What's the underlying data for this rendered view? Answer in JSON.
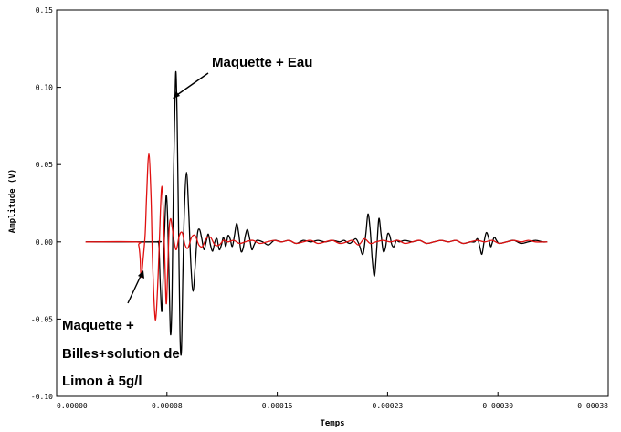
{
  "chart_data": {
    "type": "line",
    "xlabel": "Temps",
    "ylabel": "Amplitude (V)",
    "xlim": [
      0,
      0.00038
    ],
    "ylim": [
      -0.1,
      0.15
    ],
    "grid": false,
    "x_ticks": [
      {
        "value": 0,
        "label": "0.00000"
      },
      {
        "value": 7.6e-05,
        "label": "0.00008"
      },
      {
        "value": 0.000152,
        "label": "0.00015"
      },
      {
        "value": 0.000228,
        "label": "0.00023"
      },
      {
        "value": 0.000304,
        "label": "0.00030"
      },
      {
        "value": 0.00038,
        "label": "0.00038"
      }
    ],
    "y_ticks": [
      {
        "value": -0.1,
        "label": "-0.10"
      },
      {
        "value": -0.05,
        "label": "-0.05"
      },
      {
        "value": 0.0,
        "label": "0.00"
      },
      {
        "value": 0.05,
        "label": "0.05"
      },
      {
        "value": 0.1,
        "label": "0.10"
      },
      {
        "value": 0.15,
        "label": "0.15"
      }
    ],
    "series": [
      {
        "color": "#000000",
        "points": [
          [
            2e-05,
            0
          ],
          [
            6.8e-05,
            0
          ],
          [
            6.95e-05,
            0
          ],
          [
            7.05e-05,
            -0.003
          ],
          [
            7.15e-05,
            -0.03
          ],
          [
            7.25e-05,
            -0.045
          ],
          [
            7.35e-05,
            -0.02
          ],
          [
            7.45e-05,
            0.01
          ],
          [
            7.55e-05,
            0.03
          ],
          [
            7.65e-05,
            0.015
          ],
          [
            7.75e-05,
            -0.025
          ],
          [
            7.85e-05,
            -0.06
          ],
          [
            7.95e-05,
            -0.035
          ],
          [
            8.05e-05,
            0.04
          ],
          [
            8.15e-05,
            0.09
          ],
          [
            8.22e-05,
            0.11
          ],
          [
            8.3e-05,
            0.08
          ],
          [
            8.4e-05,
            0.01
          ],
          [
            8.5e-05,
            -0.06
          ],
          [
            8.6e-05,
            -0.07
          ],
          [
            8.7e-05,
            -0.02
          ],
          [
            8.8e-05,
            0.02
          ],
          [
            8.95e-05,
            0.045
          ],
          [
            9.1e-05,
            0.02
          ],
          [
            9.25e-05,
            -0.015
          ],
          [
            9.4e-05,
            -0.032
          ],
          [
            9.55e-05,
            -0.015
          ],
          [
            9.7e-05,
            0.005
          ],
          [
            9.85e-05,
            0.008
          ],
          [
            0.0001,
            0.002
          ],
          [
            0.0001015,
            -0.005
          ],
          [
            0.000103,
            0
          ],
          [
            0.0001045,
            0.005
          ],
          [
            0.000106,
            -0.002
          ],
          [
            0.0001075,
            -0.006
          ],
          [
            0.000109,
            0
          ],
          [
            0.0001105,
            0.002
          ],
          [
            0.000112,
            -0.005
          ],
          [
            0.0001135,
            -0.002
          ],
          [
            0.000115,
            0.003
          ],
          [
            0.0001165,
            -0.003
          ],
          [
            0.000118,
            0.004
          ],
          [
            0.0001195,
            0.002
          ],
          [
            0.000121,
            -0.003
          ],
          [
            0.0001225,
            0.004
          ],
          [
            0.000124,
            0.012
          ],
          [
            0.0001255,
            0.005
          ],
          [
            0.000127,
            -0.006
          ],
          [
            0.0001285,
            -0.004
          ],
          [
            0.00013,
            0.004
          ],
          [
            0.0001315,
            0.008
          ],
          [
            0.000133,
            0.002
          ],
          [
            0.0001345,
            -0.005
          ],
          [
            0.000136,
            -0.002
          ],
          [
            0.000138,
            0.001
          ],
          [
            0.000142,
            0
          ],
          [
            0.000146,
            -0.002
          ],
          [
            0.00015,
            0.001
          ],
          [
            0.000155,
            0
          ],
          [
            0.00016,
            0.001
          ],
          [
            0.000165,
            -0.001
          ],
          [
            0.00017,
            0.001
          ],
          [
            0.000175,
            0
          ],
          [
            0.00018,
            0.001
          ],
          [
            0.000185,
            0
          ],
          [
            0.00019,
            0.001
          ],
          [
            0.000195,
            0
          ],
          [
            0.000198,
            0.001
          ],
          [
            0.000202,
            -0.001
          ],
          [
            0.000206,
            0.002
          ],
          [
            0.0002085,
            -0.002
          ],
          [
            0.000211,
            -0.008
          ],
          [
            0.000213,
            0.005
          ],
          [
            0.0002145,
            0.018
          ],
          [
            0.000216,
            0.008
          ],
          [
            0.0002175,
            -0.012
          ],
          [
            0.000219,
            -0.022
          ],
          [
            0.0002205,
            -0.005
          ],
          [
            0.000222,
            0.015
          ],
          [
            0.0002235,
            0.005
          ],
          [
            0.000225,
            -0.006
          ],
          [
            0.0002265,
            -0.004
          ],
          [
            0.000228,
            0.005
          ],
          [
            0.0002295,
            0.004
          ],
          [
            0.000231,
            -0.002
          ],
          [
            0.0002325,
            -0.003
          ],
          [
            0.000234,
            0.001
          ],
          [
            0.000236,
            0
          ],
          [
            0.00024,
            0.001
          ],
          [
            0.000245,
            0
          ],
          [
            0.00025,
            0.001
          ],
          [
            0.000255,
            -0.001
          ],
          [
            0.00026,
            0
          ],
          [
            0.000265,
            0.001
          ],
          [
            0.00027,
            0
          ],
          [
            0.000275,
            0.001
          ],
          [
            0.00028,
            -0.001
          ],
          [
            0.000285,
            0
          ],
          [
            0.000288,
            0
          ],
          [
            0.00029,
            0.002
          ],
          [
            0.0002915,
            -0.003
          ],
          [
            0.000293,
            -0.008
          ],
          [
            0.0002945,
            0
          ],
          [
            0.000296,
            0.006
          ],
          [
            0.0002975,
            0.003
          ],
          [
            0.000299,
            -0.003
          ],
          [
            0.0003,
            -0.001
          ],
          [
            0.0003015,
            0.003
          ],
          [
            0.000303,
            0.001
          ],
          [
            0.000305,
            -0.001
          ],
          [
            0.00031,
            0
          ],
          [
            0.000315,
            0.001
          ],
          [
            0.00032,
            -0.001
          ],
          [
            0.000325,
            0
          ],
          [
            0.00033,
            0.001
          ],
          [
            0.000335,
            0
          ],
          [
            0.000338,
            0
          ]
        ]
      },
      {
        "color": "#e01010",
        "points": [
          [
            2e-05,
            0
          ],
          [
            5.5e-05,
            0
          ],
          [
            5.65e-05,
            -0.002
          ],
          [
            5.75e-05,
            -0.01
          ],
          [
            5.8e-05,
            -0.021
          ],
          [
            5.85e-05,
            -0.022
          ],
          [
            5.95e-05,
            -0.012
          ],
          [
            6.1e-05,
            0.005
          ],
          [
            6.2e-05,
            0.03
          ],
          [
            6.35e-05,
            0.057
          ],
          [
            6.5e-05,
            0.03
          ],
          [
            6.6e-05,
            -0.01
          ],
          [
            6.75e-05,
            -0.045
          ],
          [
            6.85e-05,
            -0.048
          ],
          [
            7e-05,
            -0.02
          ],
          [
            7.15e-05,
            0.02
          ],
          [
            7.25e-05,
            0.036
          ],
          [
            7.35e-05,
            0.02
          ],
          [
            7.45e-05,
            -0.01
          ],
          [
            7.55e-05,
            -0.04
          ],
          [
            7.65e-05,
            -0.02
          ],
          [
            7.75e-05,
            0.008
          ],
          [
            7.85e-05,
            0.015
          ],
          [
            7.95e-05,
            0.01
          ],
          [
            8.1e-05,
            0
          ],
          [
            8.25e-05,
            -0.005
          ],
          [
            8.45e-05,
            0.004
          ],
          [
            8.65e-05,
            0.006
          ],
          [
            8.85e-05,
            -0.002
          ],
          [
            9.05e-05,
            -0.004
          ],
          [
            9.3e-05,
            0.003
          ],
          [
            9.55e-05,
            0.004
          ],
          [
            9.8e-05,
            -0.002
          ],
          [
            0.0001005,
            -0.003
          ],
          [
            0.000103,
            0.002
          ],
          [
            0.000106,
            0.003
          ],
          [
            0.000109,
            -0.002
          ],
          [
            0.000112,
            -0.002
          ],
          [
            0.000115,
            0.001
          ],
          [
            0.000118,
            0
          ],
          [
            0.000122,
            0.001
          ],
          [
            0.000126,
            -0.001
          ],
          [
            0.00013,
            0
          ],
          [
            0.000135,
            0.001
          ],
          [
            0.00014,
            -0.001
          ],
          [
            0.000145,
            0
          ],
          [
            0.00015,
            0.001
          ],
          [
            0.000155,
            0
          ],
          [
            0.00016,
            0.001
          ],
          [
            0.000165,
            -0.001
          ],
          [
            0.00017,
            0
          ],
          [
            0.000175,
            0.001
          ],
          [
            0.00018,
            -0.001
          ],
          [
            0.000185,
            0
          ],
          [
            0.00019,
            0.001
          ],
          [
            0.000195,
            -0.001
          ],
          [
            0.0002,
            0
          ],
          [
            0.000204,
            0.001
          ],
          [
            0.000208,
            -0.002
          ],
          [
            0.000212,
            0.002
          ],
          [
            0.000216,
            -0.001
          ],
          [
            0.00022,
            0
          ],
          [
            0.000225,
            0.001
          ],
          [
            0.00023,
            0
          ],
          [
            0.000235,
            0.001
          ],
          [
            0.00024,
            -0.001
          ],
          [
            0.000245,
            0
          ],
          [
            0.00025,
            0.001
          ],
          [
            0.000255,
            -0.001
          ],
          [
            0.00026,
            0
          ],
          [
            0.000265,
            0.001
          ],
          [
            0.00027,
            0
          ],
          [
            0.000275,
            0.001
          ],
          [
            0.00028,
            -0.001
          ],
          [
            0.000285,
            0
          ],
          [
            0.00029,
            0.001
          ],
          [
            0.000295,
            0
          ],
          [
            0.0003,
            0.001
          ],
          [
            0.000305,
            -0.001
          ],
          [
            0.00031,
            0
          ],
          [
            0.000315,
            0.001
          ],
          [
            0.00032,
            0
          ],
          [
            0.000325,
            0.001
          ],
          [
            0.00033,
            0
          ],
          [
            0.000338,
            0
          ]
        ]
      }
    ],
    "annotations": [
      {
        "lines": [
          "Maquette + Eau"
        ],
        "points_to": [
          8.2e-05,
          0.095
        ]
      },
      {
        "lines": [
          "Maquette +",
          "Billes+solution de",
          "Limon à 5g/l"
        ],
        "points_to": [
          5.75e-05,
          -0.022
        ]
      }
    ]
  }
}
